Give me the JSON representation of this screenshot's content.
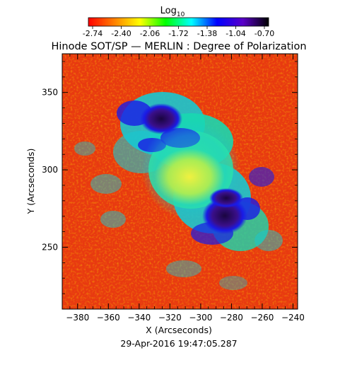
{
  "colorbar": {
    "label": "Log",
    "label_subscript": "10",
    "tick_labels": [
      "-2.74",
      "-2.40",
      "-2.06",
      "-1.72",
      "-1.38",
      "-1.04",
      "-0.70"
    ],
    "colormap_colors": [
      "#ff0000",
      "#ff7f00",
      "#ffff00",
      "#00ff00",
      "#00ffff",
      "#0000ff",
      "#5a00c8",
      "#000000"
    ]
  },
  "title": "Hinode SOT/SP — MERLIN : Degree of Polarization",
  "x_axis": {
    "label": "X (Arcseconds)",
    "range": [
      -390,
      -237
    ],
    "ticks": [
      -380,
      -360,
      -340,
      -320,
      -300,
      -280,
      -260,
      -240
    ]
  },
  "y_axis": {
    "label": "Y (Arcseconds)",
    "range": [
      210,
      375
    ],
    "ticks": [
      250,
      300,
      350
    ]
  },
  "timestamp": "29-Apr-2016 19:47:05.287",
  "features": {
    "background_color": "#e83a10",
    "sunspot_color": "#2a0a6a",
    "penumbra_color": "#1a1ae6",
    "plage_color": "#18d8b0",
    "core_color": "#e8f030"
  }
}
